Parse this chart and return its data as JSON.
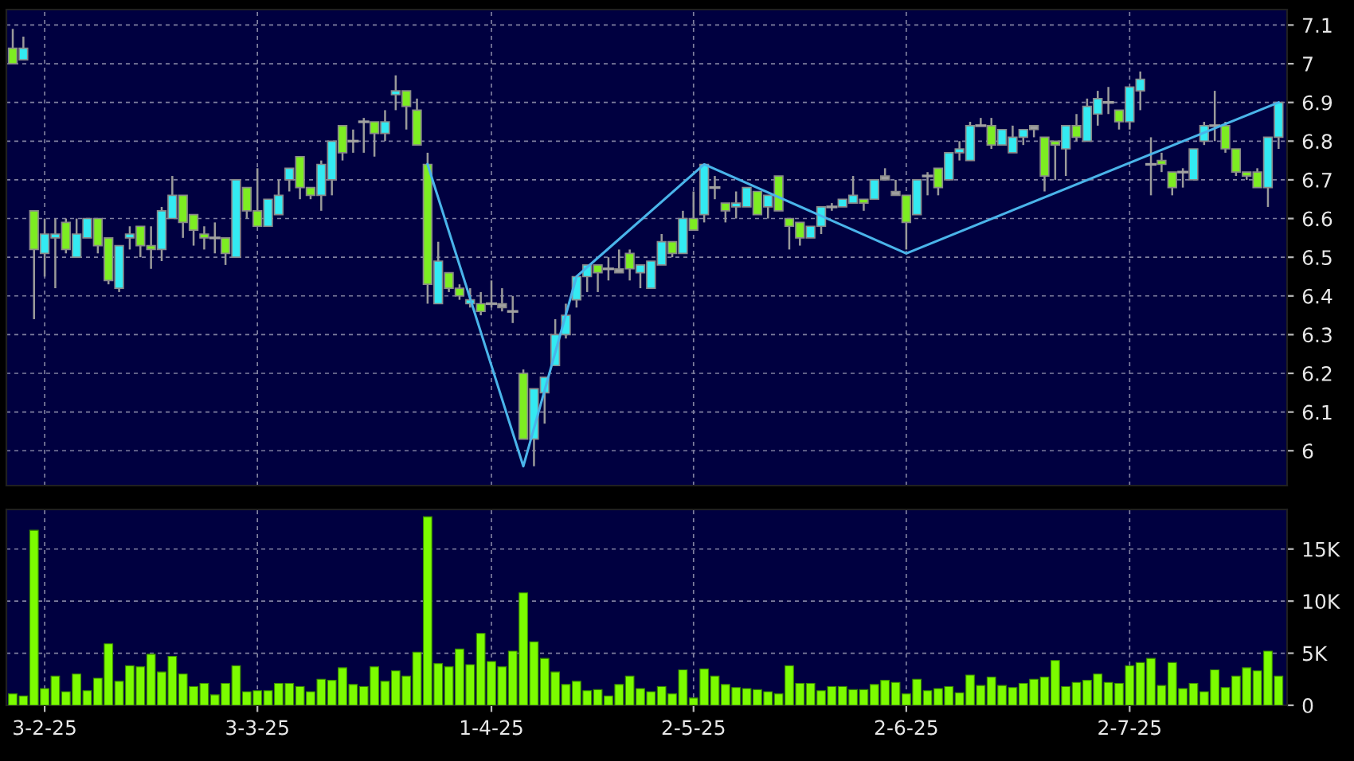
{
  "chart_data": [
    {
      "type": "candlestick",
      "categories": [
        null,
        null,
        null,
        null,
        null,
        null,
        null,
        null,
        null,
        null,
        null,
        null,
        null,
        null,
        null,
        null,
        null,
        null,
        null,
        null,
        null,
        null,
        null,
        null,
        null,
        null,
        null,
        null,
        null,
        null,
        null,
        null,
        null,
        null,
        null,
        null,
        null,
        null,
        null,
        null,
        null,
        null,
        null,
        null,
        null,
        null,
        null,
        null,
        null,
        null,
        null,
        null,
        null,
        null,
        null,
        null,
        null,
        null,
        null,
        null,
        null,
        null,
        null,
        null,
        null,
        null,
        null,
        null,
        null,
        null,
        null,
        null,
        null,
        null,
        null,
        null,
        null,
        null,
        null,
        null,
        null,
        null,
        null,
        null,
        null,
        null,
        null,
        null,
        null,
        null,
        null,
        null,
        null,
        null,
        null,
        null,
        null,
        null,
        null,
        null,
        null,
        null,
        null,
        null,
        null,
        null,
        null,
        null,
        null,
        null,
        null,
        null,
        null,
        null,
        null,
        null,
        null,
        null,
        null,
        null
      ],
      "ohlc": [
        [
          7.04,
          7.09,
          7.0,
          7.0
        ],
        [
          7.01,
          7.07,
          7.01,
          7.04
        ],
        [
          6.62,
          6.62,
          6.34,
          6.52
        ],
        [
          6.51,
          6.6,
          6.45,
          6.56
        ],
        [
          6.55,
          6.6,
          6.42,
          6.56
        ],
        [
          6.59,
          6.6,
          6.51,
          6.52
        ],
        [
          6.5,
          6.6,
          6.5,
          6.56
        ],
        [
          6.55,
          6.6,
          6.55,
          6.6
        ],
        [
          6.6,
          6.6,
          6.51,
          6.53
        ],
        [
          6.55,
          6.55,
          6.43,
          6.44
        ],
        [
          6.42,
          6.53,
          6.41,
          6.53
        ],
        [
          6.55,
          6.58,
          6.52,
          6.56
        ],
        [
          6.58,
          6.58,
          6.5,
          6.53
        ],
        [
          6.53,
          6.58,
          6.47,
          6.52
        ],
        [
          6.52,
          6.63,
          6.49,
          6.62
        ],
        [
          6.6,
          6.71,
          6.6,
          6.66
        ],
        [
          6.66,
          6.66,
          6.55,
          6.59
        ],
        [
          6.61,
          6.61,
          6.53,
          6.57
        ],
        [
          6.56,
          6.58,
          6.52,
          6.55
        ],
        [
          6.55,
          6.59,
          6.51,
          6.55
        ],
        [
          6.55,
          6.55,
          6.48,
          6.51
        ],
        [
          6.5,
          6.7,
          6.5,
          6.7
        ],
        [
          6.68,
          6.68,
          6.6,
          6.62
        ],
        [
          6.62,
          6.73,
          6.58,
          6.58
        ],
        [
          6.58,
          6.65,
          6.58,
          6.65
        ],
        [
          6.61,
          6.7,
          6.61,
          6.66
        ],
        [
          6.7,
          6.73,
          6.67,
          6.73
        ],
        [
          6.76,
          6.76,
          6.65,
          6.68
        ],
        [
          6.68,
          6.68,
          6.65,
          6.66
        ],
        [
          6.66,
          6.75,
          6.62,
          6.74
        ],
        [
          6.7,
          6.8,
          6.66,
          6.8
        ],
        [
          6.84,
          6.84,
          6.75,
          6.77
        ],
        [
          6.8,
          6.83,
          6.77,
          6.8
        ],
        [
          6.85,
          6.86,
          6.77,
          6.85
        ],
        [
          6.85,
          6.85,
          6.76,
          6.82
        ],
        [
          6.82,
          6.88,
          6.8,
          6.85
        ],
        [
          6.92,
          6.97,
          6.88,
          6.93
        ],
        [
          6.93,
          6.93,
          6.83,
          6.89
        ],
        [
          6.88,
          6.91,
          6.79,
          6.79
        ],
        [
          6.74,
          6.77,
          6.38,
          6.43
        ],
        [
          6.38,
          6.54,
          6.38,
          6.49
        ],
        [
          6.46,
          6.46,
          6.41,
          6.42
        ],
        [
          6.42,
          6.43,
          6.39,
          6.4
        ],
        [
          6.38,
          6.42,
          6.37,
          6.39
        ],
        [
          6.38,
          6.41,
          6.35,
          6.36
        ],
        [
          6.38,
          6.44,
          6.37,
          6.38
        ],
        [
          6.38,
          6.42,
          6.36,
          6.37
        ],
        [
          6.36,
          6.4,
          6.33,
          6.36
        ],
        [
          6.2,
          6.21,
          6.03,
          6.03
        ],
        [
          6.03,
          6.16,
          5.96,
          6.16
        ],
        [
          6.15,
          6.19,
          6.07,
          6.19
        ],
        [
          6.22,
          6.34,
          6.22,
          6.3
        ],
        [
          6.3,
          6.38,
          6.29,
          6.35
        ],
        [
          6.39,
          6.45,
          6.37,
          6.45
        ],
        [
          6.45,
          6.48,
          6.41,
          6.48
        ],
        [
          6.48,
          6.48,
          6.41,
          6.46
        ],
        [
          6.47,
          6.5,
          6.44,
          6.47
        ],
        [
          6.46,
          6.52,
          6.46,
          6.47
        ],
        [
          6.51,
          6.52,
          6.44,
          6.47
        ],
        [
          6.46,
          6.48,
          6.42,
          6.48
        ],
        [
          6.42,
          6.49,
          6.42,
          6.49
        ],
        [
          6.48,
          6.56,
          6.48,
          6.54
        ],
        [
          6.54,
          6.54,
          6.5,
          6.51
        ],
        [
          6.51,
          6.62,
          6.51,
          6.6
        ],
        [
          6.6,
          6.67,
          6.57,
          6.57
        ],
        [
          6.61,
          6.74,
          6.59,
          6.74
        ],
        [
          6.68,
          6.71,
          6.65,
          6.68
        ],
        [
          6.64,
          6.64,
          6.59,
          6.62
        ],
        [
          6.63,
          6.67,
          6.6,
          6.64
        ],
        [
          6.63,
          6.68,
          6.63,
          6.68
        ],
        [
          6.67,
          6.67,
          6.61,
          6.61
        ],
        [
          6.63,
          6.66,
          6.6,
          6.66
        ],
        [
          6.71,
          6.71,
          6.62,
          6.62
        ],
        [
          6.6,
          6.6,
          6.52,
          6.58
        ],
        [
          6.59,
          6.59,
          6.53,
          6.55
        ],
        [
          6.55,
          6.58,
          6.55,
          6.58
        ],
        [
          6.58,
          6.63,
          6.56,
          6.63
        ],
        [
          6.63,
          6.64,
          6.62,
          6.63
        ],
        [
          6.63,
          6.65,
          6.63,
          6.65
        ],
        [
          6.64,
          6.71,
          6.64,
          6.66
        ],
        [
          6.65,
          6.65,
          6.62,
          6.64
        ],
        [
          6.65,
          6.7,
          6.65,
          6.7
        ],
        [
          6.71,
          6.73,
          6.7,
          6.7
        ],
        [
          6.67,
          6.7,
          6.66,
          6.66
        ],
        [
          6.66,
          6.66,
          6.52,
          6.59
        ],
        [
          6.61,
          6.7,
          6.61,
          6.7
        ],
        [
          6.71,
          6.72,
          6.66,
          6.71
        ],
        [
          6.73,
          6.73,
          6.66,
          6.68
        ],
        [
          6.7,
          6.77,
          6.7,
          6.77
        ],
        [
          6.77,
          6.8,
          6.75,
          6.78
        ],
        [
          6.75,
          6.85,
          6.75,
          6.84
        ],
        [
          6.84,
          6.86,
          6.84,
          6.84
        ],
        [
          6.84,
          6.86,
          6.78,
          6.79
        ],
        [
          6.79,
          6.83,
          6.79,
          6.83
        ],
        [
          6.77,
          6.84,
          6.77,
          6.81
        ],
        [
          6.81,
          6.83,
          6.79,
          6.83
        ],
        [
          6.83,
          6.84,
          6.81,
          6.84
        ],
        [
          6.81,
          6.81,
          6.67,
          6.71
        ],
        [
          6.8,
          6.8,
          6.7,
          6.79
        ],
        [
          6.78,
          6.84,
          6.71,
          6.84
        ],
        [
          6.84,
          6.87,
          6.8,
          6.81
        ],
        [
          6.8,
          6.91,
          6.8,
          6.89
        ],
        [
          6.87,
          6.93,
          6.84,
          6.91
        ],
        [
          6.9,
          6.94,
          6.87,
          6.9
        ],
        [
          6.88,
          6.88,
          6.83,
          6.85
        ],
        [
          6.85,
          6.94,
          6.83,
          6.94
        ],
        [
          6.93,
          6.98,
          6.88,
          6.96
        ],
        [
          6.74,
          6.81,
          6.66,
          6.74
        ],
        [
          6.75,
          6.77,
          6.72,
          6.74
        ],
        [
          6.72,
          6.72,
          6.66,
          6.68
        ],
        [
          6.72,
          6.73,
          6.68,
          6.72
        ],
        [
          6.7,
          6.78,
          6.7,
          6.78
        ],
        [
          6.8,
          6.85,
          6.79,
          6.84
        ],
        [
          6.84,
          6.93,
          6.8,
          6.84
        ],
        [
          6.84,
          6.85,
          6.77,
          6.78
        ],
        [
          6.78,
          6.78,
          6.71,
          6.72
        ],
        [
          6.72,
          6.72,
          6.7,
          6.71
        ],
        [
          6.72,
          6.73,
          6.68,
          6.68
        ],
        [
          6.68,
          6.81,
          6.63,
          6.81
        ],
        [
          6.81,
          6.9,
          6.78,
          6.9
        ]
      ],
      "colors": [
        "#7ded22",
        "#33eaf2",
        "#7ded22",
        "#33eaf2",
        "#33eaf2",
        "#7ded22",
        "#33eaf2",
        "#33eaf2",
        "#7ded22",
        "#7ded22",
        "#33eaf2",
        "#33eaf2",
        "#7ded22",
        "#7ded22",
        "#33eaf2",
        "#33eaf2",
        "#7ded22",
        "#7ded22",
        "#7ded22",
        "#a0a0a0",
        "#7ded22",
        "#33eaf2",
        "#7ded22",
        "#7ded22",
        "#33eaf2",
        "#33eaf2",
        "#33eaf2",
        "#7ded22",
        "#7ded22",
        "#33eaf2",
        "#33eaf2",
        "#7ded22",
        "#a0a0a0",
        "#a0a0a0",
        "#7ded22",
        "#33eaf2",
        "#33eaf2",
        "#7ded22",
        "#7ded22",
        "#7ded22",
        "#33eaf2",
        "#7ded22",
        "#7ded22",
        "#33eaf2",
        "#7ded22",
        "#a0a0a0",
        "#a0a0a0",
        "#a0a0a0",
        "#7ded22",
        "#33eaf2",
        "#33eaf2",
        "#33eaf2",
        "#33eaf2",
        "#33eaf2",
        "#33eaf2",
        "#7ded22",
        "#a0a0a0",
        "#a0a0a0",
        "#7ded22",
        "#33eaf2",
        "#33eaf2",
        "#33eaf2",
        "#7ded22",
        "#33eaf2",
        "#7ded22",
        "#33eaf2",
        "#a0a0a0",
        "#7ded22",
        "#33eaf2",
        "#33eaf2",
        "#7ded22",
        "#33eaf2",
        "#7ded22",
        "#7ded22",
        "#7ded22",
        "#33eaf2",
        "#33eaf2",
        "#a0a0a0",
        "#33eaf2",
        "#33eaf2",
        "#7ded22",
        "#33eaf2",
        "#a0a0a0",
        "#a0a0a0",
        "#7ded22",
        "#33eaf2",
        "#a0a0a0",
        "#7ded22",
        "#33eaf2",
        "#33eaf2",
        "#33eaf2",
        "#a0a0a0",
        "#7ded22",
        "#33eaf2",
        "#33eaf2",
        "#33eaf2",
        "#a0a0a0",
        "#7ded22",
        "#7ded22",
        "#33eaf2",
        "#7ded22",
        "#33eaf2",
        "#33eaf2",
        "#a0a0a0",
        "#7ded22",
        "#33eaf2",
        "#33eaf2",
        "#a0a0a0",
        "#7ded22",
        "#7ded22",
        "#a0a0a0",
        "#33eaf2",
        "#33eaf2",
        "#a0a0a0",
        "#7ded22",
        "#7ded22",
        "#7ded22",
        "#7ded22",
        "#33eaf2",
        "#33eaf2"
      ],
      "series": [
        {
          "type": "line",
          "color": "#4ab4ea",
          "values": [
            null,
            null,
            null,
            null,
            null,
            null,
            null,
            null,
            null,
            null,
            null,
            null,
            null,
            null,
            null,
            null,
            null,
            null,
            null,
            null,
            null,
            null,
            null,
            null,
            null,
            null,
            null,
            null,
            null,
            null,
            null,
            null,
            null,
            null,
            null,
            null,
            null,
            null,
            null,
            6.74,
            null,
            null,
            null,
            null,
            null,
            null,
            null,
            null,
            5.96,
            null,
            null,
            null,
            null,
            6.45,
            null,
            null,
            null,
            null,
            null,
            null,
            null,
            null,
            null,
            null,
            null,
            6.74,
            null,
            null,
            null,
            null,
            null,
            null,
            null,
            null,
            null,
            null,
            null,
            null,
            null,
            null,
            null,
            null,
            null,
            null,
            6.51,
            null,
            null,
            null,
            null,
            null,
            null,
            null,
            null,
            null,
            null,
            null,
            null,
            null,
            null,
            null,
            null,
            null,
            null,
            null,
            null,
            null,
            null,
            null,
            null,
            null,
            null,
            null,
            null,
            null,
            null,
            null,
            null,
            null,
            null,
            6.9
          ]
        }
      ],
      "ylim": [
        5.91,
        7.14
      ],
      "yticks": [
        6,
        6.1,
        6.2,
        6.3,
        6.4,
        6.5,
        6.6,
        6.7,
        6.8,
        6.9,
        7,
        7.1
      ],
      "grid": true,
      "tick_labels": "y"
    },
    {
      "type": "bar",
      "categories": [
        null,
        null,
        null,
        "3-2-25",
        null,
        null,
        null,
        null,
        null,
        null,
        null,
        null,
        null,
        null,
        null,
        null,
        null,
        null,
        null,
        null,
        null,
        null,
        null,
        "3-3-25",
        null,
        null,
        null,
        null,
        null,
        null,
        null,
        null,
        null,
        null,
        null,
        null,
        null,
        null,
        null,
        null,
        null,
        null,
        null,
        null,
        null,
        "1-4-25",
        null,
        null,
        null,
        null,
        null,
        null,
        null,
        null,
        null,
        null,
        null,
        null,
        null,
        null,
        null,
        null,
        null,
        null,
        "2-5-25",
        null,
        null,
        null,
        null,
        null,
        null,
        null,
        null,
        null,
        null,
        null,
        null,
        null,
        null,
        null,
        null,
        null,
        null,
        null,
        "2-6-25",
        null,
        null,
        null,
        null,
        null,
        null,
        null,
        null,
        null,
        null,
        null,
        null,
        null,
        null,
        null,
        null,
        null,
        null,
        null,
        null,
        "2-7-25",
        null,
        null,
        null,
        null,
        null,
        null,
        null,
        null,
        null,
        null,
        null,
        null,
        null,
        null
      ],
      "values": [
        1100,
        900,
        16800,
        1600,
        2800,
        1300,
        3000,
        1400,
        2600,
        5900,
        2300,
        3800,
        3700,
        4900,
        3200,
        4700,
        3000,
        1800,
        2100,
        1000,
        2100,
        3800,
        1300,
        1400,
        1400,
        2100,
        2100,
        1800,
        1300,
        2500,
        2400,
        3600,
        2000,
        1800,
        3700,
        2300,
        3300,
        2800,
        5100,
        18100,
        4000,
        3700,
        5400,
        3900,
        6900,
        4200,
        3700,
        5200,
        10800,
        6100,
        4500,
        3200,
        2000,
        2300,
        1400,
        1500,
        900,
        2000,
        2800,
        1600,
        1300,
        1800,
        1100,
        3400,
        700,
        3500,
        2800,
        2000,
        1700,
        1600,
        1500,
        1300,
        1100,
        3800,
        2100,
        2100,
        1400,
        1800,
        1800,
        1500,
        1500,
        2000,
        2400,
        2200,
        1100,
        2500,
        1400,
        1600,
        1800,
        1200,
        2900,
        1900,
        2700,
        1900,
        1700,
        2100,
        2500,
        2700,
        4300,
        1800,
        2200,
        2400,
        3000,
        2200,
        2100,
        3800,
        4100,
        4500,
        1900,
        4100,
        1600,
        2100,
        1300,
        3400,
        1700,
        2800,
        3600,
        3300,
        5200,
        2800
      ],
      "color": "#7cfc00",
      "ylim": [
        0,
        18800
      ],
      "yticks": [
        0,
        {
          "value": 5000,
          "label": "5K"
        },
        {
          "value": 10000,
          "label": "10K"
        },
        {
          "value": 15000,
          "label": "15K"
        }
      ],
      "grid": true
    }
  ]
}
